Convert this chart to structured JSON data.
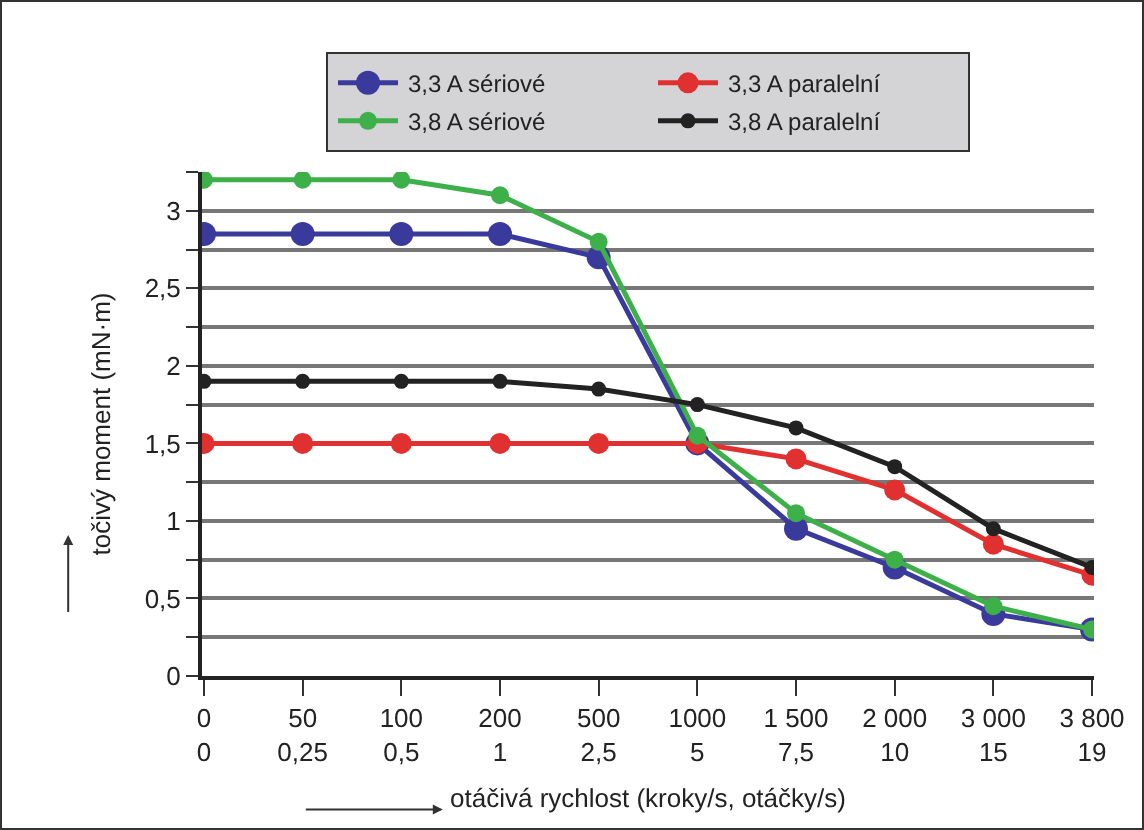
{
  "chart_data": {
    "type": "line",
    "xlabel": "otáčivá rychlost (kroky/s, otáčky/s)",
    "ylabel": "točivý moment (mN·m)",
    "categories": [
      "0\n0",
      "50\n0,25",
      "100\n0,5",
      "200\n1",
      "500\n2,5",
      "1000\n5",
      "1 500\n7,5",
      "2 000\n10",
      "3 000\n15",
      "3 800\n19"
    ],
    "series": [
      {
        "name": "3,3 A sériové",
        "color": "#3a3a9c",
        "values": [
          2.85,
          2.85,
          2.85,
          2.85,
          2.7,
          1.5,
          0.95,
          0.7,
          0.4,
          0.3
        ]
      },
      {
        "name": "3,3 A paralelní",
        "color": "#e03030",
        "values": [
          1.5,
          1.5,
          1.5,
          1.5,
          1.5,
          1.5,
          1.4,
          1.2,
          0.85,
          0.65
        ]
      },
      {
        "name": "3,8 A sériové",
        "color": "#3db04a",
        "values": [
          3.2,
          3.2,
          3.2,
          3.1,
          2.8,
          1.55,
          1.05,
          0.75,
          0.45,
          0.3
        ]
      },
      {
        "name": "3,8 A paralelní",
        "color": "#222222",
        "values": [
          1.9,
          1.9,
          1.9,
          1.9,
          1.85,
          1.75,
          1.6,
          1.35,
          0.95,
          0.7
        ]
      }
    ],
    "ylim": [
      0,
      3.25
    ],
    "yticks": [
      0,
      {
        "value": 0.25,
        "label": null
      },
      {
        "value": 0.5,
        "label": "0,5"
      },
      {
        "value": 0.75,
        "label": null
      },
      1,
      {
        "value": 1.25,
        "label": null
      },
      {
        "value": 1.5,
        "label": "1,5"
      },
      {
        "value": 1.75,
        "label": null
      },
      2,
      {
        "value": 2.25,
        "label": null
      },
      {
        "value": 2.5,
        "label": "2,5"
      },
      {
        "value": 2.75,
        "label": null
      },
      3,
      {
        "value": 3.25,
        "label": null
      }
    ],
    "grid": "y",
    "legend": "top",
    "marker": "circle",
    "line_style": "solid"
  }
}
